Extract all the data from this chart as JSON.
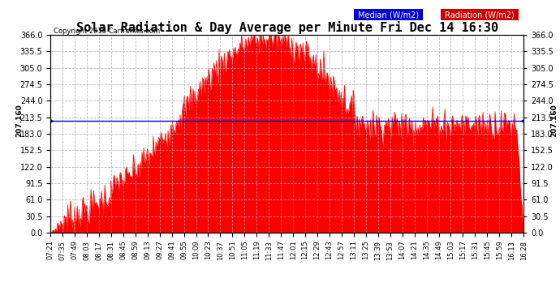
{
  "title": "Solar Radiation & Day Average per Minute Fri Dec 14 16:30",
  "copyright": "Copyright 2018 Cartronics.com",
  "median_value": 207.16,
  "ylim": [
    0,
    366
  ],
  "yticks": [
    0.0,
    30.5,
    61.0,
    91.5,
    122.0,
    152.5,
    183.0,
    213.5,
    244.0,
    274.5,
    305.0,
    335.5,
    366.0
  ],
  "bg_color": "#ffffff",
  "plot_bg_color": "#ffffff",
  "fill_color": "#ff0000",
  "line_color": "#0000cc",
  "grid_color": "#aaaaaa",
  "title_fontsize": 11,
  "legend_median_bg": "#0000cc",
  "legend_radiation_bg": "#cc0000",
  "x_labels": [
    "07:21",
    "07:35",
    "07:49",
    "08:03",
    "08:17",
    "08:31",
    "08:45",
    "08:59",
    "09:13",
    "09:27",
    "09:41",
    "09:55",
    "10:09",
    "10:23",
    "10:37",
    "10:51",
    "11:05",
    "11:19",
    "11:33",
    "11:47",
    "12:01",
    "12:15",
    "12:29",
    "12:43",
    "12:57",
    "13:11",
    "13:25",
    "13:39",
    "13:53",
    "14:07",
    "14:21",
    "14:35",
    "14:49",
    "15:03",
    "15:17",
    "15:31",
    "15:45",
    "15:59",
    "16:13",
    "16:28"
  ]
}
